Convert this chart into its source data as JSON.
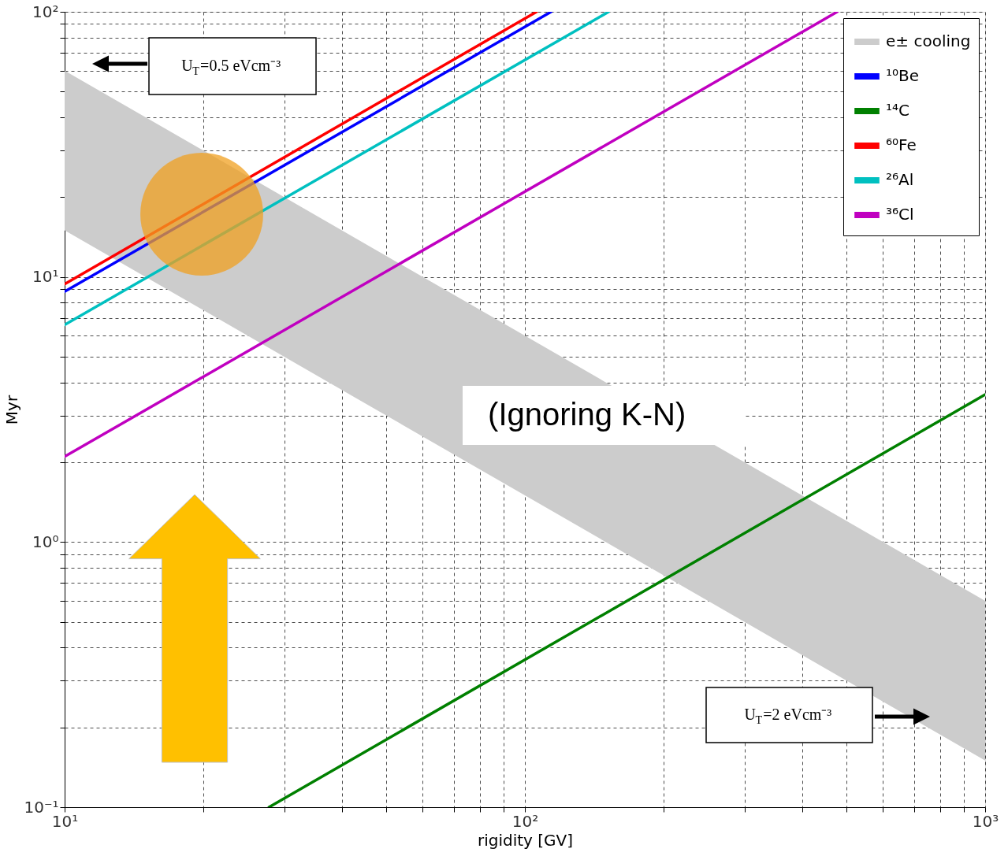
{
  "chart_data": {
    "type": "line",
    "xlabel": "rigidity [GV]",
    "ylabel": "Myr",
    "log": "xy",
    "grid": true,
    "legend": "top right",
    "line_style": "solid",
    "marker": "none",
    "xlim": [
      10,
      1000
    ],
    "ylim": [
      0.1,
      100
    ],
    "xticks": [
      {
        "value": 10,
        "label": "10¹"
      },
      {
        "value": 20,
        "label": null
      },
      {
        "value": 30,
        "label": null
      },
      {
        "value": 40,
        "label": null
      },
      {
        "value": 50,
        "label": null
      },
      {
        "value": 60,
        "label": null
      },
      {
        "value": 70,
        "label": null
      },
      {
        "value": 80,
        "label": null
      },
      {
        "value": 90,
        "label": null
      },
      {
        "value": 100,
        "label": "10²"
      },
      {
        "value": 200,
        "label": null
      },
      {
        "value": 300,
        "label": null
      },
      {
        "value": 400,
        "label": null
      },
      {
        "value": 500,
        "label": null
      },
      {
        "value": 600,
        "label": null
      },
      {
        "value": 700,
        "label": null
      },
      {
        "value": 800,
        "label": null
      },
      {
        "value": 900,
        "label": null
      },
      {
        "value": 1000,
        "label": "10³"
      }
    ],
    "yticks": [
      {
        "value": 0.1,
        "label": "10⁻¹"
      },
      {
        "value": 0.2,
        "label": null
      },
      {
        "value": 0.3,
        "label": null
      },
      {
        "value": 0.4,
        "label": null
      },
      {
        "value": 0.5,
        "label": null
      },
      {
        "value": 0.6,
        "label": null
      },
      {
        "value": 0.7,
        "label": null
      },
      {
        "value": 0.8,
        "label": null
      },
      {
        "value": 0.9,
        "label": null
      },
      {
        "value": 1,
        "label": "10⁰"
      },
      {
        "value": 2,
        "label": null
      },
      {
        "value": 3,
        "label": null
      },
      {
        "value": 4,
        "label": null
      },
      {
        "value": 5,
        "label": null
      },
      {
        "value": 6,
        "label": null
      },
      {
        "value": 7,
        "label": null
      },
      {
        "value": 8,
        "label": null
      },
      {
        "value": 9,
        "label": null
      },
      {
        "value": 10,
        "label": "10¹"
      },
      {
        "value": 20,
        "label": null
      },
      {
        "value": 30,
        "label": null
      },
      {
        "value": 40,
        "label": null
      },
      {
        "value": 50,
        "label": null
      },
      {
        "value": 60,
        "label": null
      },
      {
        "value": 70,
        "label": null
      },
      {
        "value": 80,
        "label": null
      },
      {
        "value": 90,
        "label": null
      },
      {
        "value": 100,
        "label": "10²"
      }
    ],
    "series": [
      {
        "name": "e± cooling",
        "type": "area",
        "color": "#cccccc",
        "x": [
          10,
          100,
          1000
        ],
        "values": [
          null,
          null,
          null
        ],
        "upper": [
          60,
          6,
          0.6
        ],
        "lower": [
          15,
          1.5,
          0.15
        ]
      },
      {
        "name": "¹⁰Be",
        "type": "line",
        "color": "#0000ff",
        "x": [
          10,
          114
        ],
        "values": [
          8.8,
          100
        ]
      },
      {
        "name": "¹⁴C",
        "type": "line",
        "color": "#008000",
        "x": [
          27.8,
          1000
        ],
        "values": [
          0.1,
          3.6
        ]
      },
      {
        "name": "⁶⁰Fe",
        "type": "line",
        "color": "#ff0000",
        "x": [
          10,
          106
        ],
        "values": [
          9.4,
          100
        ]
      },
      {
        "name": "²⁶Al",
        "type": "line",
        "color": "#00c0c0",
        "x": [
          10,
          152
        ],
        "values": [
          6.6,
          100
        ]
      },
      {
        "name": "³⁶Cl",
        "type": "line",
        "color": "#c000c0",
        "x": [
          10,
          477
        ],
        "values": [
          2.1,
          100
        ]
      }
    ],
    "annotations": [
      "U$_{T}$=0.5 eVcm⁻³",
      "U$_{T}$=2 eVcm⁻³",
      "(Ignoring K-N)"
    ]
  }
}
